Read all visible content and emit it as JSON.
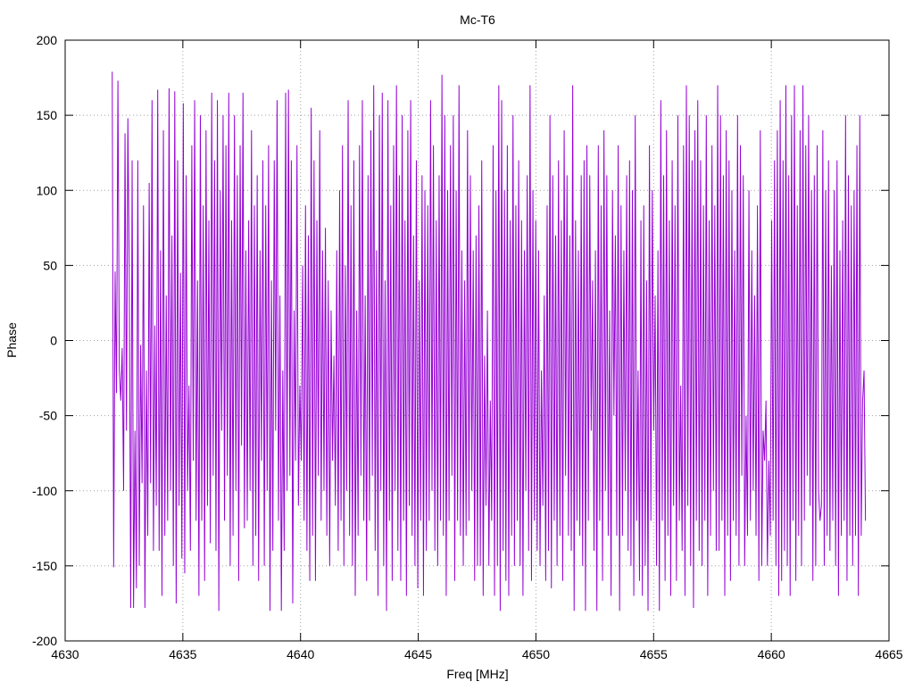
{
  "chart_data": {
    "type": "line",
    "title": "Mc-T6",
    "xlabel": "Freq [MHz]",
    "ylabel": "Phase",
    "xlim": [
      4630,
      4665
    ],
    "ylim": [
      -200,
      200
    ],
    "x_ticks": [
      4630,
      4635,
      4640,
      4645,
      4650,
      4655,
      4660,
      4665
    ],
    "y_ticks": [
      -200,
      -150,
      -100,
      -50,
      0,
      50,
      100,
      150,
      200
    ],
    "grid": true,
    "legend": "none",
    "series": [
      {
        "color": "#9400d3",
        "x_start": 4632.0,
        "x_end": 4664.0,
        "values": [
          179,
          -151,
          46,
          -35,
          173,
          -20,
          -40,
          -5,
          -100,
          138,
          -60,
          148,
          40,
          -178,
          120,
          -178,
          -60,
          -165,
          120,
          -150,
          -3,
          -95,
          90,
          -178,
          -20,
          -130,
          105,
          -95,
          160,
          -140,
          10,
          -110,
          167,
          -140,
          60,
          -170,
          140,
          -130,
          30,
          -120,
          168,
          -100,
          70,
          -150,
          166,
          -175,
          120,
          -110,
          45,
          -145,
          158,
          -155,
          110,
          -100,
          -30,
          -140,
          130,
          -80,
          160,
          -120,
          40,
          -170,
          150,
          -120,
          90,
          -160,
          140,
          -110,
          80,
          -135,
          165,
          -90,
          120,
          -140,
          160,
          -180,
          100,
          -60,
          150,
          -120,
          130,
          -90,
          165,
          -150,
          80,
          -130,
          150,
          -100,
          110,
          -160,
          130,
          -70,
          165,
          -125,
          60,
          -120,
          80,
          -100,
          140,
          -150,
          90,
          -130,
          110,
          -160,
          60,
          -80,
          120,
          -150,
          90,
          -100,
          130,
          -180,
          40,
          -140,
          120,
          -60,
          160,
          -120,
          30,
          -180,
          -20,
          -140,
          165,
          -100,
          167,
          -90,
          120,
          -175,
          20,
          -80,
          130,
          -110,
          -30,
          -80,
          50,
          -120,
          90,
          -140,
          70,
          -160,
          155,
          -130,
          120,
          -160,
          80,
          -90,
          140,
          -120,
          60,
          -100,
          75,
          -130,
          40,
          -150,
          20,
          -80,
          -10,
          -110,
          60,
          -140,
          100,
          -120,
          130,
          -150,
          50,
          -100,
          160,
          -130,
          90,
          -150,
          120,
          -170,
          20,
          -130,
          130,
          -90,
          160,
          -120,
          30,
          -160,
          110,
          -120,
          140,
          -90,
          170,
          -140,
          60,
          -170,
          150,
          -100,
          165,
          -150,
          40,
          -180,
          160,
          -120,
          90,
          -160,
          130,
          -100,
          170,
          -140,
          110,
          -160,
          150,
          -120,
          80,
          -170,
          140,
          -110,
          160,
          -130,
          70,
          -150,
          120,
          -165,
          40,
          -120,
          110,
          -170,
          100,
          -140,
          90,
          -120,
          160,
          -100,
          130,
          -140,
          80,
          -150,
          110,
          -120,
          177,
          -130,
          150,
          -170,
          100,
          -120,
          130,
          -90,
          150,
          -160,
          100,
          -120,
          170,
          -130,
          60,
          -150,
          40,
          -130,
          140,
          -120,
          110,
          -100,
          60,
          -160,
          70,
          -150,
          90,
          -150,
          120,
          -170,
          -10,
          -110,
          20,
          -150,
          -40,
          -120,
          130,
          -170,
          100,
          -150,
          170,
          -180,
          160,
          -140,
          100,
          -160,
          130,
          -170,
          80,
          -130,
          150,
          -150,
          90,
          -120,
          120,
          -150,
          80,
          -170,
          60,
          -100,
          110,
          -140,
          170,
          -160,
          100,
          -120,
          80,
          -140,
          60,
          -150,
          -20,
          -110,
          30,
          -160,
          90,
          -140,
          150,
          -165,
          110,
          -120,
          70,
          -150,
          120,
          -130,
          80,
          -160,
          140,
          -90,
          110,
          -130,
          70,
          -140,
          170,
          -180,
          80,
          -120,
          60,
          -130,
          110,
          -150,
          120,
          -180,
          130,
          -120,
          110,
          -60,
          40,
          -140,
          60,
          -180,
          130,
          -120,
          90,
          -160,
          140,
          -100,
          110,
          -130,
          20,
          -170,
          100,
          -50,
          70,
          -130,
          130,
          -180,
          90,
          -130,
          60,
          -100,
          110,
          -140,
          120,
          -150,
          100,
          -170,
          150,
          -120,
          -20,
          -160,
          80,
          -170,
          90,
          -150,
          40,
          -180,
          130,
          -120,
          100,
          -60,
          30,
          -150,
          60,
          -180,
          160,
          -120,
          110,
          -160,
          140,
          -130,
          80,
          -170,
          120,
          -110,
          90,
          -160,
          150,
          -120,
          -30,
          -140,
          130,
          -170,
          170,
          -110,
          150,
          -150,
          120,
          -178,
          140,
          -120,
          160,
          -140,
          120,
          -150,
          90,
          -120,
          150,
          -170,
          80,
          -130,
          130,
          -100,
          90,
          -140,
          170,
          -140,
          150,
          -120,
          110,
          -170,
          140,
          -130,
          120,
          -160,
          100,
          -120,
          60,
          -130,
          150,
          -150,
          130,
          -90,
          110,
          -150,
          -50,
          -130,
          100,
          -120,
          60,
          -100,
          30,
          -130,
          90,
          -160,
          140,
          -150,
          -60,
          -80,
          -40,
          -150,
          -80,
          -130,
          80,
          -120,
          120,
          -150,
          140,
          -170,
          160,
          -160,
          120,
          -140,
          170,
          -150,
          110,
          -170,
          150,
          -120,
          170,
          -160,
          90,
          -130,
          140,
          -150,
          170,
          -120,
          130,
          -90,
          150,
          -110,
          100,
          -160,
          110,
          -150,
          130,
          -100,
          -120,
          -110,
          140,
          -150,
          100,
          -130,
          120,
          -140,
          50,
          -120,
          100,
          -150,
          120,
          -170,
          60,
          -130,
          80,
          -120,
          150,
          -160,
          110,
          -130,
          90,
          -150,
          100,
          -130,
          130,
          -170,
          150,
          -130,
          -40,
          -20,
          -120
        ]
      }
    ]
  }
}
